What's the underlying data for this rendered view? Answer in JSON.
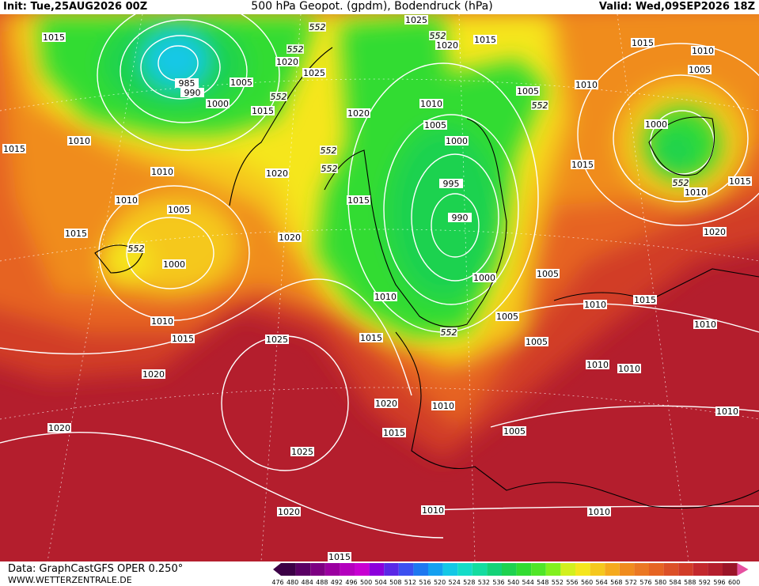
{
  "header": {
    "init": "Init: Tue,25AUG2026 00Z",
    "title": "500 hPa Geopot. (gpdm), Bodendruck (hPa)",
    "valid": "Valid: Wed,09SEP2026 18Z"
  },
  "footer": {
    "data_source": "Data: GraphCastGFS OPER 0.250°",
    "website": "WWW.WETTERZENTRALE.DE"
  },
  "isobar_labels": [
    1015,
    985,
    990,
    1005,
    1000,
    1020,
    1025,
    1015,
    1010,
    1015,
    1010,
    1010,
    1005,
    1015,
    1000,
    1020,
    1010,
    1015,
    1025,
    1020,
    1020,
    1025,
    1020,
    1025,
    1020,
    1015,
    1020,
    1010,
    1005,
    1000,
    995,
    990,
    1015,
    1020,
    1000,
    1010,
    1005,
    1005,
    1015,
    1005,
    1010,
    1015,
    1010,
    1010,
    1010,
    1020,
    1010,
    1015,
    1005,
    1010,
    1010,
    1015,
    1010,
    1005,
    1010,
    1015,
    1015,
    1010,
    1005,
    1000,
    1010,
    1015,
    1020
  ],
  "geopotential_labels": [
    552,
    552,
    552,
    552,
    552,
    552,
    552,
    552,
    552,
    552
  ],
  "scale": {
    "values": [
      476,
      480,
      484,
      488,
      492,
      496,
      500,
      504,
      508,
      512,
      516,
      520,
      524,
      528,
      532,
      536,
      540,
      544,
      548,
      552,
      556,
      560,
      564,
      568,
      572,
      576,
      580,
      584,
      588,
      592,
      596,
      600
    ],
    "colors": [
      "#3c0046",
      "#5a0064",
      "#7d0082",
      "#9b00a0",
      "#b400be",
      "#c800d2",
      "#8c00dc",
      "#5a28e6",
      "#3c50f0",
      "#1e78f0",
      "#14a0f0",
      "#14c8e6",
      "#14dcc8",
      "#14dca0",
      "#14d278",
      "#1ed250",
      "#32dc32",
      "#50e628",
      "#82f01e",
      "#d2f01e",
      "#f5e61e",
      "#f5c81e",
      "#f5aa1e",
      "#f08c1e",
      "#eb7823",
      "#e66423",
      "#dc5028",
      "#d23c28",
      "#c3282d",
      "#b41e2d",
      "#9b1428",
      "#e650a0"
    ]
  }
}
